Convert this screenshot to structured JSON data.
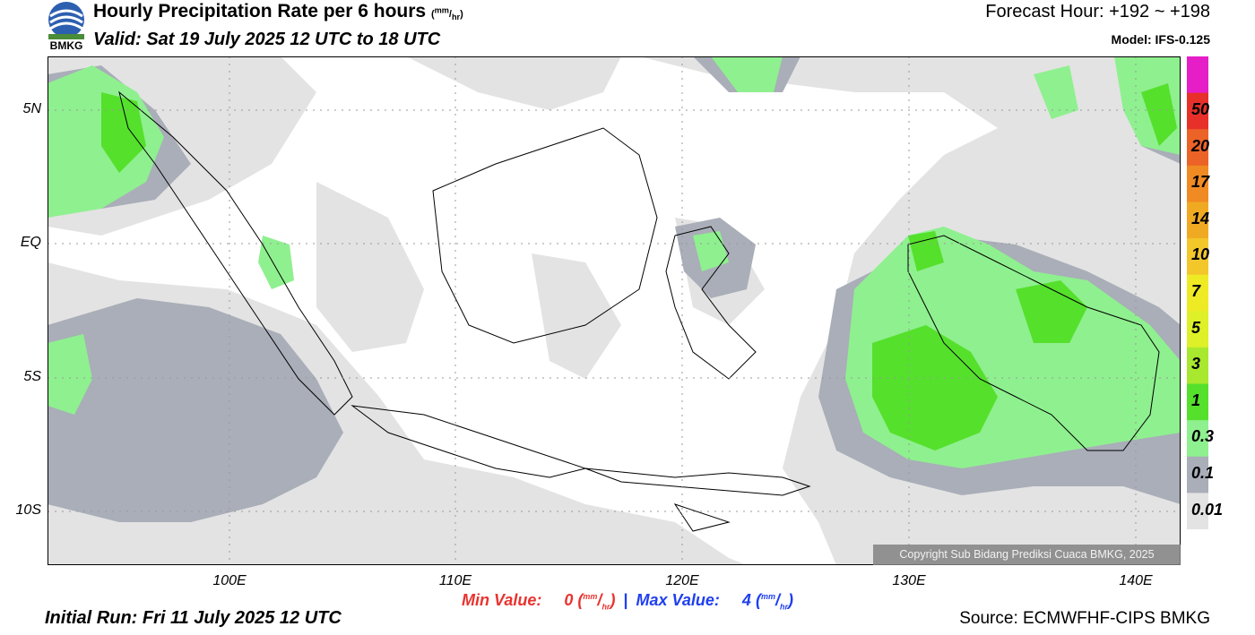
{
  "header": {
    "title": "Hourly Precipitation Rate per 6 hours",
    "title_unit_num": "mm",
    "title_unit_den": "hr",
    "valid": "Valid: Sat 19 July 2025 12 UTC to 18 UTC",
    "forecast": "Forecast Hour: +192 ~ +198",
    "model": "Model: IFS-0.125",
    "logo_text": "BMKG"
  },
  "map": {
    "lat_labels": [
      "5N",
      "EQ",
      "5S",
      "10S"
    ],
    "lon_labels": [
      "100E",
      "110E",
      "120E",
      "130E",
      "140E"
    ],
    "lat_range": [
      -12,
      7
    ],
    "lon_range": [
      92,
      142
    ]
  },
  "colorbar": {
    "labels": [
      "50",
      "20",
      "17",
      "14",
      "10",
      "7",
      "5",
      "3",
      "1",
      "0.3",
      "0.1",
      "0.01"
    ],
    "colors": [
      "#e61ec8",
      "#e8302a",
      "#ec6328",
      "#f08a22",
      "#f0aa22",
      "#f3c72a",
      "#eeeb25",
      "#ddf028",
      "#a8e82e",
      "#55e02c",
      "#8ff08f",
      "#a9aeb8",
      "#e3e3e3"
    ]
  },
  "stats": {
    "min_label": "Min Value:",
    "min_value": "0",
    "max_label": "Max Value:",
    "max_value": "4",
    "unit_num": "mm",
    "unit_den": "hr",
    "sep": "|"
  },
  "footer": {
    "initial_run": "Initial Run: Fri 11 July 2025 12 UTC",
    "source": "Source: ECMWFHF-CIPS BMKG",
    "copyright": "Copyright Sub Bidang Prediksi Cuaca BMKG, 2025"
  }
}
